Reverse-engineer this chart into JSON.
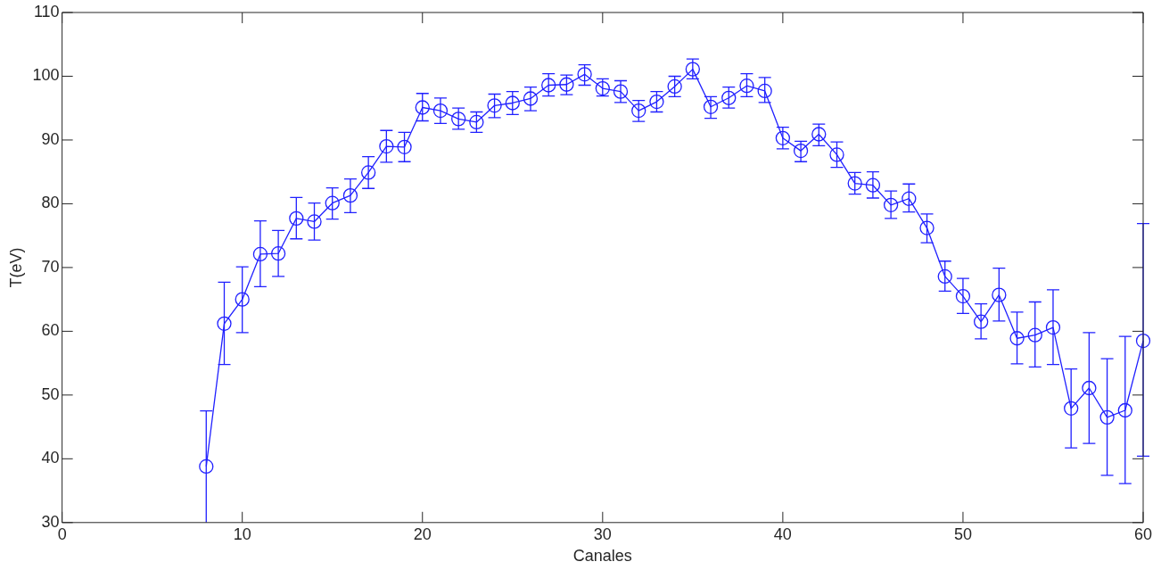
{
  "chart_data": {
    "type": "line",
    "xlabel": "Canales",
    "ylabel": "T(eV)",
    "color": "#2020ff",
    "marker": "circle",
    "line_style": "solid",
    "grid": false,
    "legend": false,
    "xlim": [
      0,
      60
    ],
    "xticks": [
      0,
      10,
      20,
      30,
      40,
      50,
      60
    ],
    "ylim": [
      30,
      110
    ],
    "yticks": [
      30,
      40,
      50,
      60,
      70,
      80,
      90,
      100,
      110
    ],
    "x": [
      8,
      9,
      10,
      11,
      12,
      13,
      14,
      15,
      16,
      17,
      18,
      19,
      20,
      21,
      22,
      23,
      24,
      25,
      26,
      27,
      28,
      29,
      30,
      31,
      32,
      33,
      34,
      35,
      36,
      37,
      38,
      39,
      40,
      41,
      42,
      43,
      44,
      45,
      46,
      47,
      48,
      49,
      50,
      51,
      52,
      53,
      54,
      55,
      56,
      57,
      58,
      59,
      60
    ],
    "values": [
      38.8,
      61.2,
      65.0,
      72.1,
      72.2,
      77.7,
      77.2,
      80.1,
      81.3,
      84.9,
      89.0,
      88.9,
      95.1,
      94.6,
      93.3,
      92.8,
      95.4,
      95.8,
      96.5,
      98.6,
      98.7,
      100.3,
      98.1,
      97.6,
      94.6,
      96.0,
      98.4,
      101.1,
      95.2,
      96.6,
      98.5,
      97.7,
      90.3,
      88.3,
      90.9,
      87.7,
      83.2,
      82.9,
      79.8,
      80.8,
      76.2,
      68.6,
      65.5,
      61.5,
      65.7,
      58.9,
      59.4,
      60.6,
      47.9,
      51.1,
      46.5,
      47.6,
      58.5
    ],
    "errors": [
      [
        30,
        47.5
      ],
      [
        54.8,
        67.7
      ],
      [
        59.8,
        70.1
      ],
      [
        67.0,
        77.3
      ],
      [
        68.6,
        75.8
      ],
      [
        74.5,
        81.0
      ],
      [
        74.3,
        80.1
      ],
      [
        77.6,
        82.5
      ],
      [
        78.6,
        83.9
      ],
      [
        82.4,
        87.4
      ],
      [
        86.5,
        91.5
      ],
      [
        86.6,
        91.2
      ],
      [
        93.0,
        97.3
      ],
      [
        92.6,
        96.6
      ],
      [
        91.7,
        95.0
      ],
      [
        91.2,
        94.4
      ],
      [
        93.5,
        97.2
      ],
      [
        94.0,
        97.6
      ],
      [
        94.6,
        98.3
      ],
      [
        96.9,
        100.4
      ],
      [
        97.1,
        100.2
      ],
      [
        98.6,
        101.8
      ],
      [
        96.9,
        99.6
      ],
      [
        95.9,
        99.3
      ],
      [
        92.9,
        96.2
      ],
      [
        94.4,
        97.6
      ],
      [
        96.8,
        100.0
      ],
      [
        99.6,
        102.7
      ],
      [
        93.4,
        96.8
      ],
      [
        95.0,
        98.3
      ],
      [
        96.8,
        100.4
      ],
      [
        95.9,
        99.8
      ],
      [
        88.6,
        92.0
      ],
      [
        86.6,
        89.8
      ],
      [
        89.1,
        92.5
      ],
      [
        85.7,
        89.7
      ],
      [
        81.5,
        84.9
      ],
      [
        80.9,
        85.0
      ],
      [
        77.7,
        82.0
      ],
      [
        78.7,
        83.1
      ],
      [
        73.9,
        78.4
      ],
      [
        66.3,
        71.0
      ],
      [
        62.8,
        68.3
      ],
      [
        58.8,
        64.3
      ],
      [
        61.6,
        69.9
      ],
      [
        54.9,
        63.0
      ],
      [
        54.4,
        64.6
      ],
      [
        54.8,
        66.5
      ],
      [
        41.7,
        54.1
      ],
      [
        42.4,
        59.8
      ],
      [
        37.4,
        55.7
      ],
      [
        36.1,
        59.2
      ],
      [
        40.4,
        76.9
      ]
    ]
  }
}
